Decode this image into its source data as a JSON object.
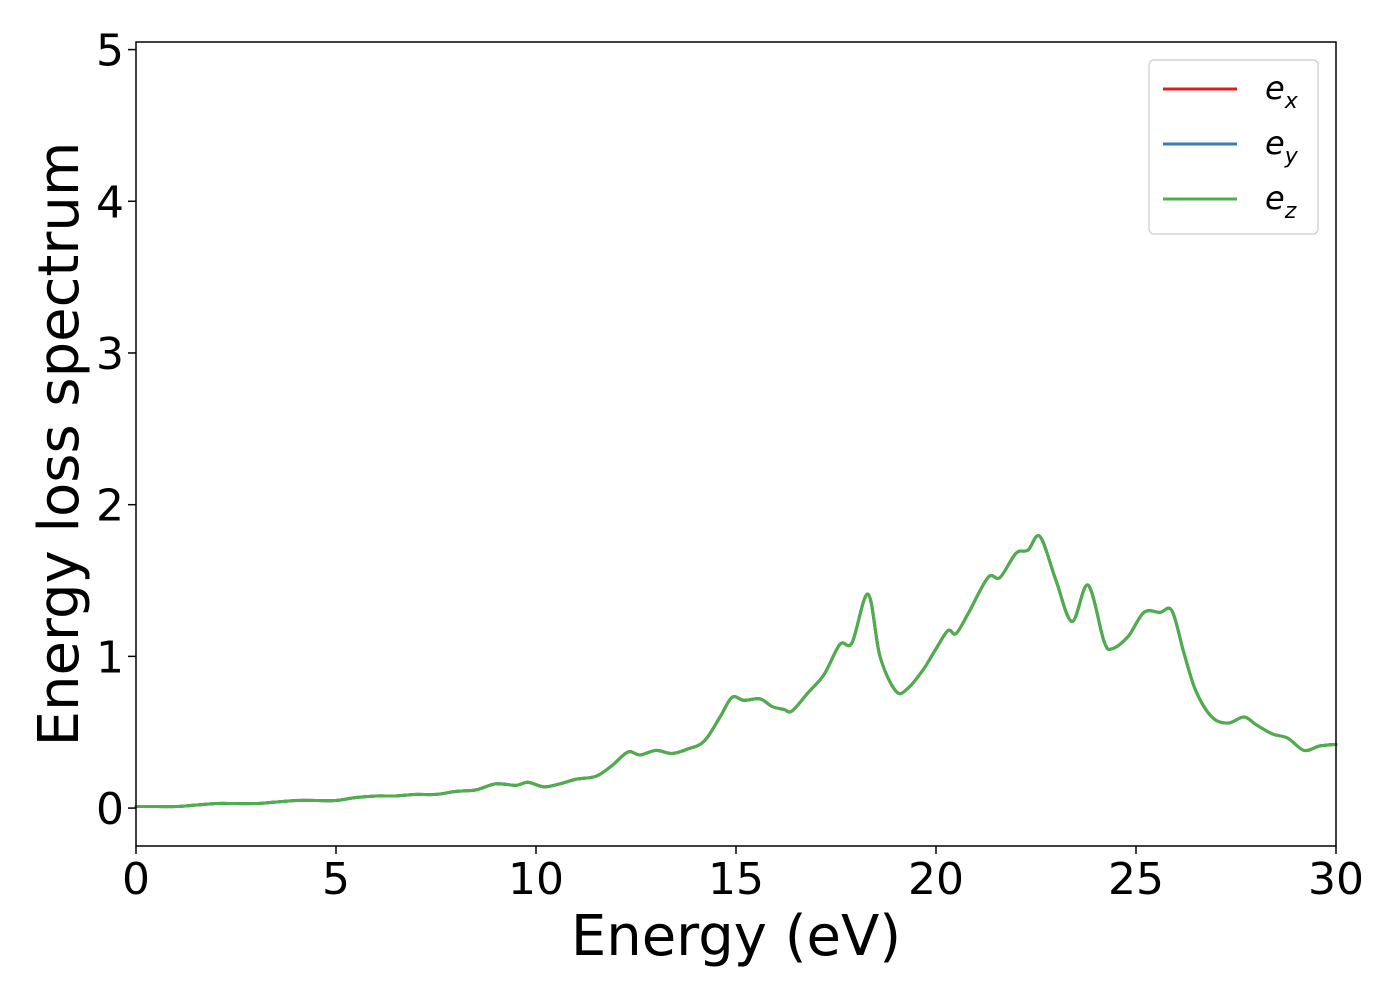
{
  "chart_data": {
    "type": "line",
    "title": "",
    "xlabel": "Energy (eV)",
    "ylabel": "Energy loss spectrum",
    "xlim": [
      0,
      30
    ],
    "ylim": [
      -0.25,
      5.05
    ],
    "xticks": [
      0,
      5,
      10,
      15,
      20,
      25,
      30
    ],
    "yticks": [
      0,
      1,
      2,
      3,
      4,
      5
    ],
    "grid": false,
    "legend_position": "top-right",
    "series": [
      {
        "name": "e_x",
        "color": "#e41a1c",
        "x": [
          0,
          0.5,
          1,
          1.5,
          2,
          2.5,
          3,
          3.5,
          4,
          4.5,
          5,
          5.5,
          6,
          6.5,
          7,
          7.5,
          8,
          8.5,
          9,
          9.5,
          9.8,
          10.2,
          10.6,
          11,
          11.5,
          11.9,
          12.3,
          12.6,
          13,
          13.4,
          13.8,
          14.2,
          14.6,
          14.9,
          15.2,
          15.6,
          15.9,
          16.2,
          16.4,
          16.8,
          17.2,
          17.6,
          17.9,
          18.3,
          18.6,
          19,
          19.3,
          19.7,
          20,
          20.3,
          20.5,
          20.8,
          21.3,
          21.6,
          22,
          22.3,
          22.6,
          23,
          23.4,
          23.8,
          24.2,
          24.4,
          24.8,
          25.2,
          25.6,
          25.9,
          26.2,
          26.5,
          26.9,
          27.3,
          27.7,
          28,
          28.4,
          28.8,
          29.2,
          29.6,
          30
        ],
        "y": [
          0.01,
          0.01,
          0.01,
          0.02,
          0.03,
          0.03,
          0.03,
          0.04,
          0.05,
          0.05,
          0.05,
          0.07,
          0.08,
          0.08,
          0.09,
          0.09,
          0.11,
          0.12,
          0.16,
          0.15,
          0.17,
          0.14,
          0.16,
          0.19,
          0.21,
          0.28,
          0.37,
          0.35,
          0.38,
          0.36,
          0.39,
          0.44,
          0.6,
          0.73,
          0.71,
          0.72,
          0.67,
          0.65,
          0.64,
          0.76,
          0.88,
          1.08,
          1.09,
          1.41,
          1.0,
          0.77,
          0.79,
          0.92,
          1.05,
          1.17,
          1.15,
          1.28,
          1.52,
          1.52,
          1.68,
          1.7,
          1.79,
          1.5,
          1.23,
          1.47,
          1.1,
          1.05,
          1.13,
          1.29,
          1.29,
          1.3,
          1.02,
          0.77,
          0.6,
          0.56,
          0.6,
          0.55,
          0.49,
          0.46,
          0.38,
          0.41,
          0.42
        ]
      },
      {
        "name": "e_y",
        "color": "#377eb8",
        "x": [
          0,
          0.5,
          1,
          1.5,
          2,
          2.5,
          3,
          3.5,
          4,
          4.5,
          5,
          5.5,
          6,
          6.5,
          7,
          7.5,
          8,
          8.5,
          9,
          9.5,
          9.8,
          10.2,
          10.6,
          11,
          11.5,
          11.9,
          12.3,
          12.6,
          13,
          13.4,
          13.8,
          14.2,
          14.6,
          14.9,
          15.2,
          15.6,
          15.9,
          16.2,
          16.4,
          16.8,
          17.2,
          17.6,
          17.9,
          18.3,
          18.6,
          19,
          19.3,
          19.7,
          20,
          20.3,
          20.5,
          20.8,
          21.3,
          21.6,
          22,
          22.3,
          22.6,
          23,
          23.4,
          23.8,
          24.2,
          24.4,
          24.8,
          25.2,
          25.6,
          25.9,
          26.2,
          26.5,
          26.9,
          27.3,
          27.7,
          28,
          28.4,
          28.8,
          29.2,
          29.6,
          30
        ],
        "y": [
          0.01,
          0.01,
          0.01,
          0.02,
          0.03,
          0.03,
          0.03,
          0.04,
          0.05,
          0.05,
          0.05,
          0.07,
          0.08,
          0.08,
          0.09,
          0.09,
          0.11,
          0.12,
          0.16,
          0.15,
          0.17,
          0.14,
          0.16,
          0.19,
          0.21,
          0.28,
          0.37,
          0.35,
          0.38,
          0.36,
          0.39,
          0.44,
          0.6,
          0.73,
          0.71,
          0.72,
          0.67,
          0.65,
          0.64,
          0.76,
          0.88,
          1.08,
          1.09,
          1.41,
          1.0,
          0.77,
          0.79,
          0.92,
          1.05,
          1.17,
          1.15,
          1.28,
          1.52,
          1.52,
          1.68,
          1.7,
          1.79,
          1.5,
          1.23,
          1.47,
          1.1,
          1.05,
          1.13,
          1.29,
          1.29,
          1.3,
          1.02,
          0.77,
          0.6,
          0.56,
          0.6,
          0.55,
          0.49,
          0.46,
          0.38,
          0.41,
          0.42
        ]
      },
      {
        "name": "e_z",
        "color": "#4daf4a",
        "x": [
          0,
          0.5,
          1,
          1.5,
          2,
          2.5,
          3,
          3.5,
          4,
          4.5,
          5,
          5.5,
          6,
          6.5,
          7,
          7.5,
          8,
          8.5,
          9,
          9.5,
          9.8,
          10.2,
          10.6,
          11,
          11.5,
          11.9,
          12.3,
          12.6,
          13,
          13.4,
          13.8,
          14.2,
          14.6,
          14.9,
          15.2,
          15.6,
          15.9,
          16.2,
          16.4,
          16.8,
          17.2,
          17.6,
          17.9,
          18.3,
          18.6,
          19,
          19.3,
          19.7,
          20,
          20.3,
          20.5,
          20.8,
          21.3,
          21.6,
          22,
          22.3,
          22.6,
          23,
          23.4,
          23.8,
          24.2,
          24.4,
          24.8,
          25.2,
          25.6,
          25.9,
          26.2,
          26.5,
          26.9,
          27.3,
          27.7,
          28,
          28.4,
          28.8,
          29.2,
          29.6,
          30
        ],
        "y": [
          0.01,
          0.01,
          0.01,
          0.02,
          0.03,
          0.03,
          0.03,
          0.04,
          0.05,
          0.05,
          0.05,
          0.07,
          0.08,
          0.08,
          0.09,
          0.09,
          0.11,
          0.12,
          0.16,
          0.15,
          0.17,
          0.14,
          0.16,
          0.19,
          0.21,
          0.28,
          0.37,
          0.35,
          0.38,
          0.36,
          0.39,
          0.44,
          0.6,
          0.73,
          0.71,
          0.72,
          0.67,
          0.65,
          0.64,
          0.76,
          0.88,
          1.08,
          1.09,
          1.41,
          1.0,
          0.77,
          0.79,
          0.92,
          1.05,
          1.17,
          1.15,
          1.28,
          1.52,
          1.52,
          1.68,
          1.7,
          1.79,
          1.5,
          1.23,
          1.47,
          1.1,
          1.05,
          1.13,
          1.29,
          1.29,
          1.3,
          1.02,
          0.77,
          0.6,
          0.56,
          0.6,
          0.55,
          0.49,
          0.46,
          0.38,
          0.41,
          0.42
        ]
      }
    ],
    "legend": [
      {
        "base": "e",
        "sub": "x",
        "color": "#e41a1c"
      },
      {
        "base": "e",
        "sub": "y",
        "color": "#377eb8"
      },
      {
        "base": "e",
        "sub": "z",
        "color": "#4daf4a"
      }
    ]
  }
}
